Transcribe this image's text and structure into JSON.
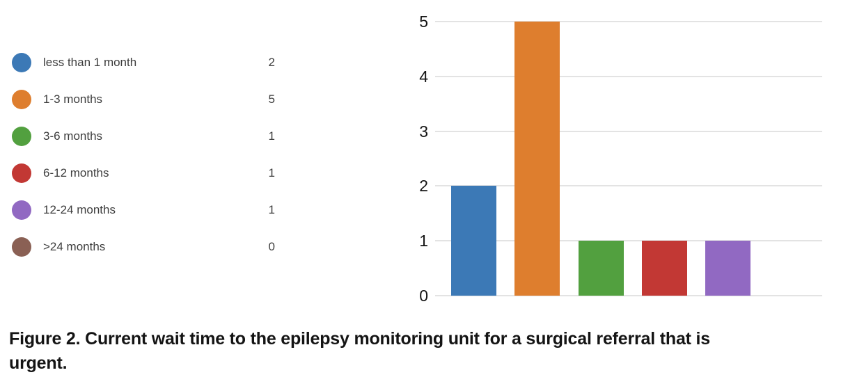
{
  "figure": {
    "caption": {
      "line1": "Figure 2. Current wait time to the epilepsy monitoring unit for a surgical referral that is",
      "line2": "urgent."
    }
  },
  "legend": {
    "items": [
      {
        "label": "less than 1 month",
        "value": "2",
        "color": "#3c79b6"
      },
      {
        "label": "1-3 months",
        "value": "5",
        "color": "#de7e2e"
      },
      {
        "label": "3-6 months",
        "value": "1",
        "color": "#52a03f"
      },
      {
        "label": "6-12 months",
        "value": "1",
        "color": "#c23834"
      },
      {
        "label": "12-24 months",
        "value": "1",
        "color": "#9169c2"
      },
      {
        "label": ">24 months",
        "value": "0",
        "color": "#8a6054"
      }
    ]
  },
  "chart_data": {
    "type": "bar",
    "categories": [
      "less than 1 month",
      "1-3 months",
      "3-6 months",
      "6-12 months",
      "12-24 months",
      ">24 months"
    ],
    "values": [
      2,
      5,
      1,
      1,
      1,
      0
    ],
    "colors": [
      "#3c79b6",
      "#de7e2e",
      "#52a03f",
      "#c23834",
      "#9169c2",
      "#8a6054"
    ],
    "title": "",
    "xlabel": "",
    "ylabel": "",
    "ylim": [
      0,
      5
    ],
    "yticks": [
      0,
      1,
      2,
      3,
      4,
      5
    ],
    "grid": true,
    "legend_position": "left"
  },
  "colors": {
    "gridline": "#e3e3e3",
    "tick_label": "#141414",
    "legend_text": "#3d3d3d",
    "caption_text": "#141414"
  }
}
